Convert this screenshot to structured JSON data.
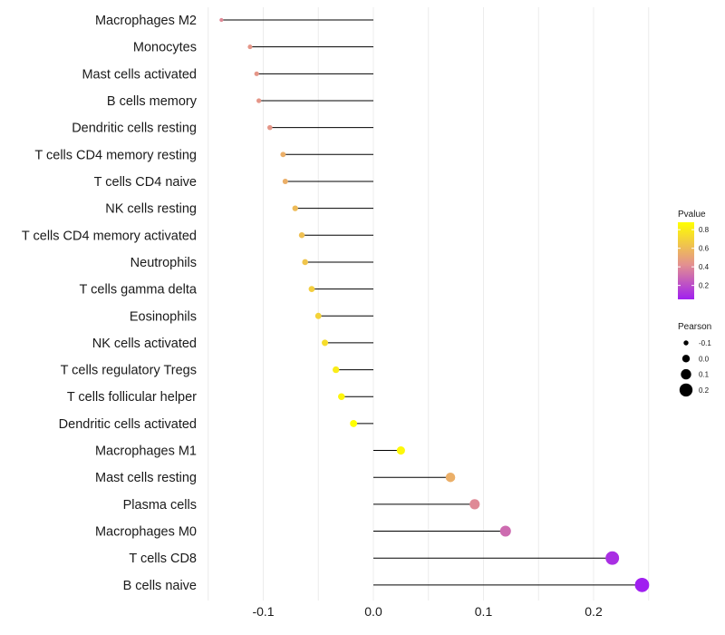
{
  "chart_data": {
    "type": "lollipop",
    "categories": [
      "Macrophages M2",
      "Monocytes",
      "Mast cells activated",
      "B cells memory",
      "Dendritic cells resting",
      "T cells CD4 memory resting",
      "T cells CD4 naive",
      "NK cells resting",
      "T cells CD4 memory activated",
      "Neutrophils",
      "T cells gamma delta",
      "Eosinophils",
      "NK cells activated",
      "T cells regulatory  Tregs",
      "T cells follicular helper",
      "Dendritic cells activated",
      "Macrophages M1",
      "Mast cells resting",
      "Plasma cells",
      "Macrophages M0",
      "T cells CD8",
      "B cells naive"
    ],
    "values": [
      -0.138,
      -0.112,
      -0.106,
      -0.104,
      -0.094,
      -0.082,
      -0.08,
      -0.071,
      -0.065,
      -0.062,
      -0.056,
      -0.05,
      -0.044,
      -0.034,
      -0.029,
      -0.018,
      0.025,
      0.07,
      0.092,
      0.12,
      0.217,
      0.244
    ],
    "pvalues": [
      0.4,
      0.45,
      0.45,
      0.45,
      0.45,
      0.55,
      0.55,
      0.6,
      0.62,
      0.64,
      0.68,
      0.7,
      0.74,
      0.8,
      0.84,
      0.9,
      0.85,
      0.55,
      0.4,
      0.3,
      0.1,
      0.05
    ],
    "x_ticks": [
      -0.1,
      0.0,
      0.1,
      0.2
    ],
    "x_tick_labels": [
      "-0.1",
      "0.0",
      "0.1",
      "0.2"
    ],
    "xlim": [
      -0.15,
      0.25
    ],
    "xlabel": "",
    "ylabel": "",
    "grid": true,
    "legend_color": {
      "title": "Pvalue",
      "ticks": [
        0.8,
        0.6,
        0.4,
        0.2
      ],
      "tick_labels": [
        "0.8",
        "0.6",
        "0.4",
        "0.2"
      ],
      "range": [
        0.05,
        0.88
      ],
      "colors": {
        "low": "#a020f0",
        "mid": "#e39090",
        "high": "#ffff00"
      }
    },
    "legend_size": {
      "title": "Pearson",
      "values": [
        -0.1,
        0.0,
        0.1,
        0.2
      ],
      "labels": [
        "-0.1",
        "0.0",
        "0.1",
        "0.2"
      ]
    }
  }
}
